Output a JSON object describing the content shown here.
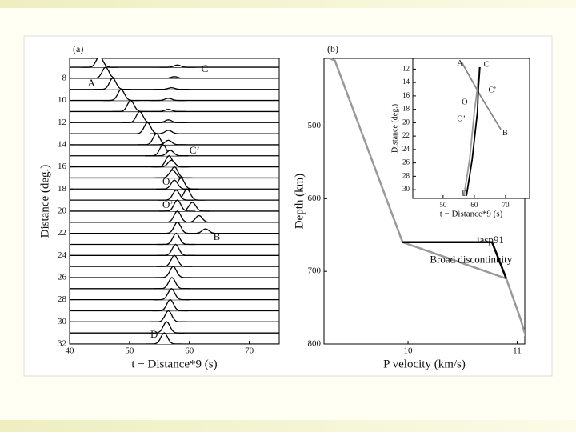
{
  "chart_data": [
    {
      "type": "record-section",
      "label": "(a)",
      "xlabel": "t − Distance*9 (s)",
      "ylabel": "Distance (deg.)",
      "xlim": [
        40,
        75
      ],
      "ylim": [
        6.2,
        32
      ],
      "xticks": [
        40,
        50,
        60,
        70
      ],
      "yticks": [
        8,
        10,
        12,
        14,
        16,
        18,
        20,
        22,
        24,
        26,
        28,
        30,
        32
      ],
      "x": [
        7,
        8,
        9,
        10,
        11,
        12,
        13,
        14,
        15,
        16,
        17,
        18,
        19,
        20,
        21,
        22,
        23,
        24,
        25,
        26,
        27,
        28,
        29,
        30,
        31,
        32
      ],
      "series": [
        {
          "color": "#000000",
          "values": [
            45,
            46,
            47.2,
            48.6,
            50.2,
            51.7,
            53,
            54.5,
            55.6,
            56.6,
            57.5,
            58.6,
            59.6,
            60.5,
            61.6,
            62.7,
            null,
            null,
            null,
            null,
            null,
            null,
            null,
            null,
            null,
            null
          ],
          "amplitudes": [
            1,
            1,
            1,
            1,
            1,
            1,
            1,
            1,
            1,
            1,
            1,
            1,
            1,
            0.8,
            0.6,
            0.4,
            null,
            null,
            null,
            null,
            null,
            null,
            null,
            null,
            null,
            null
          ]
        },
        {
          "color": "#000000",
          "values": [
            58,
            57.5,
            57,
            56.5,
            56.5,
            56.5,
            56.5,
            56.5,
            56.8,
            57,
            57.2,
            57.5,
            57.8,
            58,
            58,
            58,
            57.8,
            57.7,
            57.5,
            57.3,
            57.1,
            57,
            56.8,
            56.5,
            56.2,
            55.8
          ],
          "amplitudes": [
            0.2,
            0.15,
            0.15,
            0.2,
            0.2,
            0.25,
            0.3,
            0.4,
            0.5,
            0.6,
            0.7,
            0.8,
            0.9,
            1,
            1,
            1,
            1,
            1,
            1,
            1,
            1,
            1,
            1,
            1,
            1,
            1
          ]
        }
      ],
      "annotations": [
        {
          "text": "C",
          "x": 62,
          "y": 7.2
        },
        {
          "text": "A",
          "x": 43,
          "y": 8.5
        },
        {
          "text": "C’",
          "x": 60,
          "y": 14.6
        },
        {
          "text": "O",
          "x": 55.5,
          "y": 17.4
        },
        {
          "text": "O’",
          "x": 55.5,
          "y": 19.5
        },
        {
          "text": "B",
          "x": 64,
          "y": 22.4
        },
        {
          "text": "D",
          "x": 53.5,
          "y": 31.2
        }
      ]
    },
    {
      "type": "line",
      "label": "(b)",
      "xlabel": "P velocity (km/s)",
      "ylabel": "Depth (km)",
      "xlim": [
        9.23,
        11.07
      ],
      "ylim": [
        407,
        800
      ],
      "xticks": [
        10,
        11
      ],
      "yticks": [
        500,
        600,
        700,
        800
      ],
      "series": [
        {
          "color": "#999999",
          "x": [
            9.28,
            9.33,
            9.95,
            10.9,
            11.03,
            11.1
          ],
          "values": [
            407,
            410,
            660,
            710,
            765,
            800
          ]
        },
        {
          "color": "#000000",
          "x": [
            9.95,
            10.77,
            10.9
          ],
          "values": [
            660,
            660,
            710
          ]
        }
      ],
      "annotations": [
        {
          "text": "iasp91",
          "x": 10.63,
          "y": 658
        },
        {
          "text": "Broad discontinuity",
          "x": 10.2,
          "y": 685
        }
      ]
    },
    {
      "type": "line",
      "xlabel": "t − Distance*9 (s)",
      "ylabel": "Distance (deg.)",
      "xlim": [
        40.3,
        77.7
      ],
      "ylim": [
        10.4,
        31.3
      ],
      "xticks": [
        50,
        60,
        70
      ],
      "yticks": [
        12,
        14,
        16,
        18,
        20,
        22,
        24,
        26,
        28,
        30
      ],
      "series": [
        {
          "color": "#888888",
          "x": [
            56,
            62,
            68.5
          ],
          "values": [
            11,
            16,
            21
          ]
        },
        {
          "color": "#999999",
          "x": [
            61.5,
            61,
            60,
            58.5,
            56.7
          ],
          "values": [
            11.7,
            14.8,
            18.4,
            25.5,
            30.9
          ]
        },
        {
          "color": "#000000",
          "x": [
            61.8,
            61.3,
            61,
            59.3,
            57.5
          ],
          "values": [
            11.7,
            14.8,
            18.4,
            25.5,
            30.9
          ]
        }
      ],
      "annotations": [
        {
          "text": "A",
          "x": 54.5,
          "y": 11.2
        },
        {
          "text": "C",
          "x": 63,
          "y": 11.4
        },
        {
          "text": "C’",
          "x": 64.5,
          "y": 15.2
        },
        {
          "text": "O",
          "x": 56,
          "y": 17
        },
        {
          "text": "O’",
          "x": 54.5,
          "y": 19.5
        },
        {
          "text": "B",
          "x": 69,
          "y": 21.6
        },
        {
          "text": "D",
          "x": 56,
          "y": 30.6
        }
      ]
    }
  ]
}
